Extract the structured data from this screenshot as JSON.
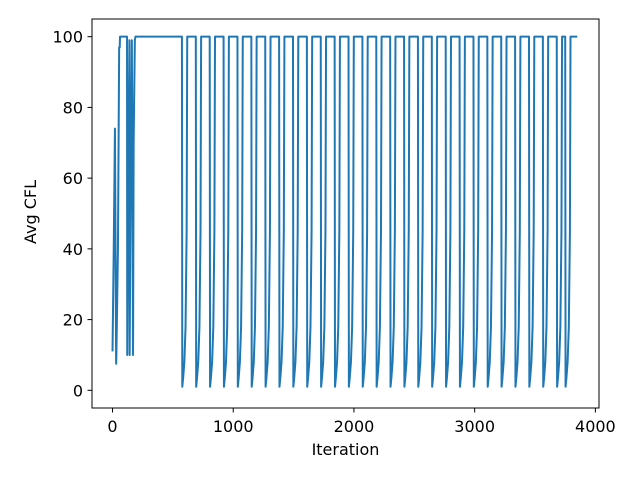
{
  "chart_data": {
    "type": "line",
    "title": "",
    "xlabel": "Iteration",
    "ylabel": "Avg CFL",
    "xlim": [
      -170,
      4030
    ],
    "ylim": [
      -5,
      105
    ],
    "xticks": [
      0,
      1000,
      2000,
      3000,
      4000
    ],
    "xtick_labels": [
      "0",
      "1000",
      "2000",
      "3000",
      "4000"
    ],
    "yticks": [
      0,
      20,
      40,
      60,
      80,
      100
    ],
    "ytick_labels": [
      "0",
      "20",
      "40",
      "60",
      "80",
      "100"
    ],
    "grid": false,
    "legend": "none",
    "series": [
      {
        "color": "#1f77b4",
        "x": [
          0,
          10,
          20,
          30,
          32,
          45,
          55,
          60,
          62,
          70,
          120,
          122,
          130,
          140,
          142,
          150,
          160,
          170,
          175,
          185,
          190,
          200,
          575,
          578,
          585,
          595,
          605,
          614,
          618,
          619,
          690,
          693,
          700,
          710,
          720,
          729,
          733,
          734,
          805,
          808,
          815,
          825,
          835,
          844,
          848,
          849,
          920,
          923,
          930,
          940,
          950,
          959,
          963,
          964,
          1035,
          1038,
          1045,
          1055,
          1065,
          1074,
          1078,
          1079,
          1150,
          1153,
          1160,
          1170,
          1180,
          1189,
          1193,
          1194,
          1265,
          1268,
          1275,
          1285,
          1295,
          1304,
          1308,
          1309,
          1380,
          1383,
          1390,
          1400,
          1410,
          1419,
          1423,
          1424,
          1495,
          1498,
          1505,
          1515,
          1525,
          1534,
          1538,
          1539,
          1610,
          1613,
          1620,
          1630,
          1640,
          1649,
          1653,
          1654,
          1725,
          1728,
          1735,
          1745,
          1755,
          1764,
          1768,
          1769,
          1840,
          1843,
          1850,
          1860,
          1870,
          1879,
          1883,
          1884,
          1955,
          1958,
          1965,
          1975,
          1985,
          1994,
          1998,
          1999,
          2070,
          2073,
          2080,
          2090,
          2100,
          2109,
          2113,
          2114,
          2185,
          2188,
          2195,
          2205,
          2215,
          2224,
          2228,
          2229,
          2300,
          2303,
          2310,
          2320,
          2330,
          2339,
          2343,
          2344,
          2415,
          2418,
          2425,
          2435,
          2445,
          2454,
          2458,
          2459,
          2530,
          2533,
          2540,
          2550,
          2560,
          2569,
          2573,
          2574,
          2645,
          2648,
          2655,
          2665,
          2675,
          2684,
          2688,
          2689,
          2760,
          2763,
          2770,
          2780,
          2790,
          2799,
          2803,
          2804,
          2875,
          2878,
          2885,
          2895,
          2905,
          2914,
          2918,
          2919,
          2990,
          2993,
          3000,
          3010,
          3020,
          3029,
          3033,
          3034,
          3105,
          3108,
          3115,
          3125,
          3135,
          3144,
          3148,
          3149,
          3220,
          3223,
          3230,
          3240,
          3250,
          3259,
          3263,
          3264,
          3335,
          3338,
          3345,
          3355,
          3365,
          3374,
          3378,
          3379,
          3450,
          3453,
          3460,
          3470,
          3480,
          3489,
          3493,
          3494,
          3565,
          3568,
          3575,
          3585,
          3595,
          3604,
          3608,
          3609,
          3680,
          3683,
          3690,
          3700,
          3710,
          3719,
          3723,
          3724,
          3750,
          3753,
          3760,
          3770,
          3780,
          3789,
          3793,
          3794,
          3850
        ],
        "y": [
          11,
          40,
          74,
          7.5,
          10,
          40,
          97,
          97,
          100,
          100,
          100,
          10,
          55,
          99,
          10,
          60,
          99,
          10,
          70,
          99,
          100,
          100,
          100,
          1,
          3.5,
          8,
          18,
          45,
          90,
          100,
          100,
          1,
          3.5,
          8,
          18,
          45,
          90,
          100,
          100,
          1,
          3.5,
          8,
          18,
          45,
          90,
          100,
          100,
          1,
          3.5,
          8,
          18,
          45,
          90,
          100,
          100,
          1,
          3.5,
          8,
          18,
          45,
          90,
          100,
          100,
          1,
          3.5,
          8,
          18,
          45,
          90,
          100,
          100,
          1,
          3.5,
          8,
          18,
          45,
          90,
          100,
          100,
          1,
          3.5,
          8,
          18,
          45,
          90,
          100,
          100,
          1,
          3.5,
          8,
          18,
          45,
          90,
          100,
          100,
          1,
          3.5,
          8,
          18,
          45,
          90,
          100,
          100,
          1,
          3.5,
          8,
          18,
          45,
          90,
          100,
          100,
          1,
          3.5,
          8,
          18,
          45,
          90,
          100,
          100,
          1,
          3.5,
          8,
          18,
          45,
          90,
          100,
          100,
          1,
          3.5,
          8,
          18,
          45,
          90,
          100,
          100,
          1,
          3.5,
          8,
          18,
          45,
          90,
          100,
          100,
          1,
          3.5,
          8,
          18,
          45,
          90,
          100,
          100,
          1,
          3.5,
          8,
          18,
          45,
          90,
          100,
          100,
          1,
          3.5,
          8,
          18,
          45,
          90,
          100,
          100,
          1,
          3.5,
          8,
          18,
          45,
          90,
          100,
          100,
          1,
          3.5,
          8,
          18,
          45,
          90,
          100,
          100,
          1,
          3.5,
          8,
          18,
          45,
          90,
          100,
          100,
          1,
          3.5,
          8,
          18,
          45,
          90,
          100,
          100,
          1,
          3.5,
          8,
          18,
          45,
          90,
          100,
          100,
          1,
          3.5,
          8,
          18,
          45,
          90,
          100,
          100,
          1,
          3.5,
          8,
          18,
          45,
          90,
          100,
          100,
          1,
          3.5,
          8,
          18,
          45,
          90,
          100,
          100,
          1,
          3.5,
          8,
          18,
          45,
          90,
          100,
          100,
          1,
          3.5,
          8,
          18,
          45,
          90,
          100,
          100,
          1,
          3.5,
          8,
          18,
          45,
          90,
          100,
          100
        ]
      }
    ]
  }
}
